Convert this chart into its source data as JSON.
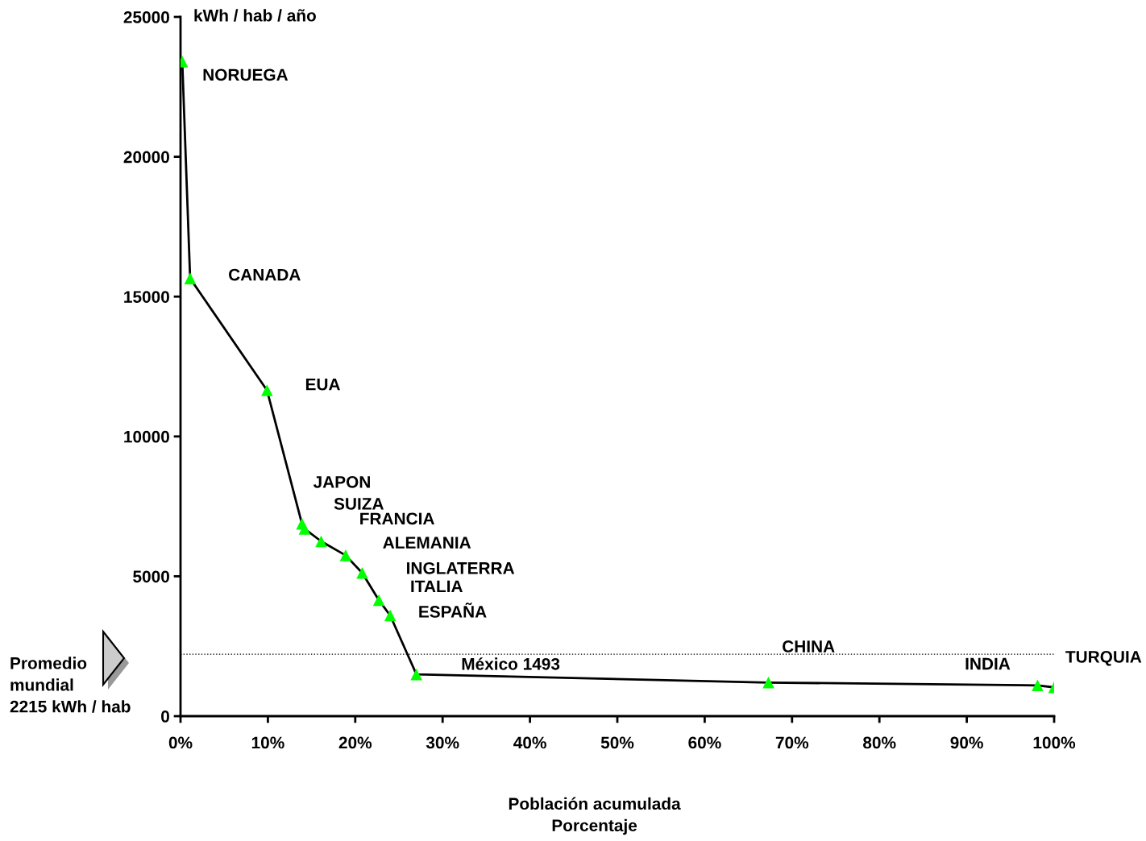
{
  "chart_data": {
    "type": "line",
    "ylabel": "kWh / hab / año",
    "xlabel": "Población acumulada\nPorcentaje",
    "x": [
      0.2,
      1.1,
      9.9,
      13.9,
      14.2,
      16.1,
      18.9,
      20.8,
      22.7,
      24.0,
      27.0,
      67.3,
      98.1,
      100.0
    ],
    "series": [
      {
        "color": "#000000",
        "colors": [
          "#00ff00",
          "#00ff00",
          "#00ff00",
          "#00ff00",
          "#00ff00",
          "#00ff00",
          "#00ff00",
          "#00ff00",
          "#00ff00",
          "#00ff00",
          "#00ff00",
          "#00ff00",
          "#00ff00",
          "#00ff00"
        ],
        "values": [
          23400,
          15650,
          11650,
          6880,
          6700,
          6250,
          5750,
          5120,
          4150,
          3600,
          1493,
          1200,
          1100,
          1030
        ]
      }
    ],
    "marker": "triangle",
    "line_style": "solid",
    "xlim": [
      0,
      100
    ],
    "xticks": [
      {
        "value": 0,
        "label": "0%"
      },
      {
        "value": 10,
        "label": "10%"
      },
      {
        "value": 20,
        "label": "20%"
      },
      {
        "value": 30,
        "label": "30%"
      },
      {
        "value": 40,
        "label": "40%"
      },
      {
        "value": 50,
        "label": "50%"
      },
      {
        "value": 60,
        "label": "60%"
      },
      {
        "value": 70,
        "label": "70%"
      },
      {
        "value": 80,
        "label": "80%"
      },
      {
        "value": 90,
        "label": "90%"
      },
      {
        "value": 100,
        "label": "100%"
      }
    ],
    "ylim": [
      0,
      25000
    ],
    "yticks": [
      0,
      5000,
      10000,
      15000,
      20000,
      25000
    ],
    "grid": false,
    "legend": false,
    "ref_lines": [
      {
        "axis": "y",
        "value": 2215,
        "label": "Promedio\nmundial\n2215 kWh / hab",
        "color": "#000000",
        "line_style": "dotted"
      }
    ],
    "annotations": [
      {
        "text": "NORUEGA",
        "x": 0.2,
        "y": 23400
      },
      {
        "text": "CANADA",
        "x": 1.1,
        "y": 15650
      },
      {
        "text": "EUA",
        "x": 9.9,
        "y": 11650
      },
      {
        "text": "JAPON",
        "x": 13.9,
        "y": 6880
      },
      {
        "text": "SUIZA",
        "x": 14.2,
        "y": 6700
      },
      {
        "text": "FRANCIA",
        "x": 16.1,
        "y": 6250
      },
      {
        "text": "ALEMANIA",
        "x": 18.9,
        "y": 5750
      },
      {
        "text": "INGLATERRA",
        "x": 20.8,
        "y": 5120
      },
      {
        "text": "ITALIA",
        "x": 22.7,
        "y": 4150
      },
      {
        "text": "ESPAÑA",
        "x": 24.0,
        "y": 3600
      },
      {
        "text": "México 1493",
        "x": 27.0,
        "y": 1493
      },
      {
        "text": "CHINA",
        "x": 67.3,
        "y": 1200
      },
      {
        "text": "INDIA",
        "x": 98.1,
        "y": 1100
      },
      {
        "text": "TURQUIA",
        "x": 100.0,
        "y": 1030
      }
    ]
  }
}
